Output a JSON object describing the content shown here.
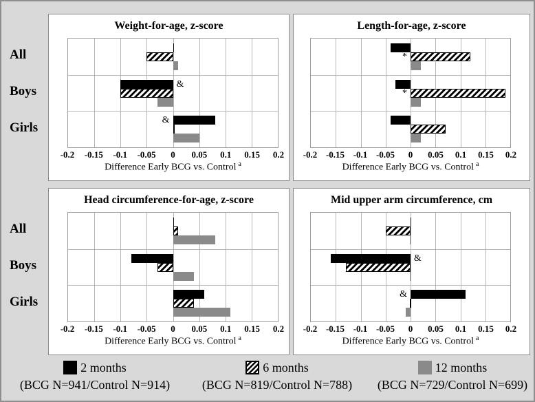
{
  "figure": {
    "background_color": "#d9d9d9",
    "panel_background": "#ffffff",
    "bar_colors": {
      "2 months": "#000000",
      "6 months": "black-on-white diagonal hatch",
      "12 months": "#8a8a8a"
    },
    "row_labels": [
      "All",
      "Boys",
      "Girls"
    ],
    "legend": {
      "items": [
        {
          "swatch": "black",
          "label": "2 months",
          "detail": "(BCG N=941/Control N=914)"
        },
        {
          "swatch": "hatched",
          "label": "6 months",
          "detail": "(BCG N=819/Control N=788)"
        },
        {
          "swatch": "gray",
          "label": "12 months",
          "detail": "(BCG N=729/Control N=699)"
        }
      ]
    }
  },
  "chart_data": [
    {
      "type": "bar",
      "orientation": "horizontal",
      "title": "Weight-for-age, z-score",
      "categories": [
        "All",
        "Boys",
        "Girls"
      ],
      "series": [
        {
          "name": "2 months",
          "style": "black",
          "values": [
            0.002,
            -0.1,
            0.08
          ]
        },
        {
          "name": "6 months",
          "style": "hatched",
          "values": [
            -0.05,
            -0.1,
            0.002
          ]
        },
        {
          "name": "12 months",
          "style": "gray",
          "values": [
            0.01,
            -0.03,
            0.05
          ]
        }
      ],
      "annotations": [
        {
          "category": "Boys",
          "series": "2 months",
          "text": "&",
          "side": "right"
        },
        {
          "category": "Girls",
          "series": "2 months",
          "text": "&",
          "side": "left"
        }
      ],
      "xlim": [
        -0.2,
        0.2
      ],
      "grid_step": 0.05,
      "xticks": [
        "-0.2",
        "-0.15",
        "-0.1",
        "-0.05",
        "0",
        "0.05",
        "0.1",
        "0.15",
        "0.2"
      ],
      "xlabel": "Difference Early BCG vs. Control",
      "xlabel_sup": "a"
    },
    {
      "type": "bar",
      "orientation": "horizontal",
      "title": "Length-for-age, z-score",
      "categories": [
        "All",
        "Boys",
        "Girls"
      ],
      "series": [
        {
          "name": "2 months",
          "style": "black",
          "values": [
            -0.04,
            -0.03,
            -0.04
          ]
        },
        {
          "name": "6 months",
          "style": "hatched",
          "values": [
            0.12,
            0.19,
            0.07
          ]
        },
        {
          "name": "12 months",
          "style": "gray",
          "values": [
            0.02,
            0.02,
            0.02
          ]
        }
      ],
      "annotations": [
        {
          "category": "All",
          "series": "6 months",
          "text": "*",
          "side": "left"
        },
        {
          "category": "Boys",
          "series": "6 months",
          "text": "*",
          "side": "left"
        }
      ],
      "xlim": [
        -0.2,
        0.2
      ],
      "grid_step": 0.05,
      "xticks": [
        "-0.2",
        "-0.15",
        "-0.1",
        "-0.05",
        "0",
        "0.05",
        "0.1",
        "0.15",
        "0.2"
      ],
      "xlabel": "Difference Early BCG vs. Control",
      "xlabel_sup": "a"
    },
    {
      "type": "bar",
      "orientation": "horizontal",
      "title": "Head circumference-for-age, z-score",
      "categories": [
        "All",
        "Boys",
        "Girls"
      ],
      "series": [
        {
          "name": "2 months",
          "style": "black",
          "values": [
            0.002,
            -0.08,
            0.06
          ]
        },
        {
          "name": "6 months",
          "style": "hatched",
          "values": [
            0.01,
            -0.03,
            0.04
          ]
        },
        {
          "name": "12 months",
          "style": "gray",
          "values": [
            0.08,
            0.04,
            0.11
          ]
        }
      ],
      "annotations": [],
      "xlim": [
        -0.2,
        0.2
      ],
      "grid_step": 0.05,
      "xticks": [
        "-0.2",
        "-0.15",
        "-0.1",
        "-0.05",
        "0",
        "0.05",
        "0.1",
        "0.15",
        "0.2"
      ],
      "xlabel": "Difference Early BCG vs. Control",
      "xlabel_sup": "a"
    },
    {
      "type": "bar",
      "orientation": "horizontal",
      "title": "Mid upper arm circumference, cm",
      "categories": [
        "All",
        "Boys",
        "Girls"
      ],
      "series": [
        {
          "name": "2 months",
          "style": "black",
          "values": [
            0.002,
            -0.16,
            0.11
          ]
        },
        {
          "name": "6 months",
          "style": "hatched",
          "values": [
            -0.05,
            -0.13,
            -0.002
          ]
        },
        {
          "name": "12 months",
          "style": "gray",
          "values": [
            -0.002,
            -0.002,
            -0.01
          ]
        }
      ],
      "annotations": [
        {
          "category": "Boys",
          "series": "2 months",
          "text": "&",
          "side": "right"
        },
        {
          "category": "Girls",
          "series": "2 months",
          "text": "&",
          "side": "left"
        }
      ],
      "xlim": [
        -0.2,
        0.2
      ],
      "grid_step": 0.05,
      "xticks": [
        "-0.2",
        "-0.15",
        "-0.1",
        "-0.05",
        "0",
        "0.05",
        "0.1",
        "0.15",
        "0.2"
      ],
      "xlabel": "Difference Early BCG vs. Control",
      "xlabel_sup": "a"
    }
  ]
}
